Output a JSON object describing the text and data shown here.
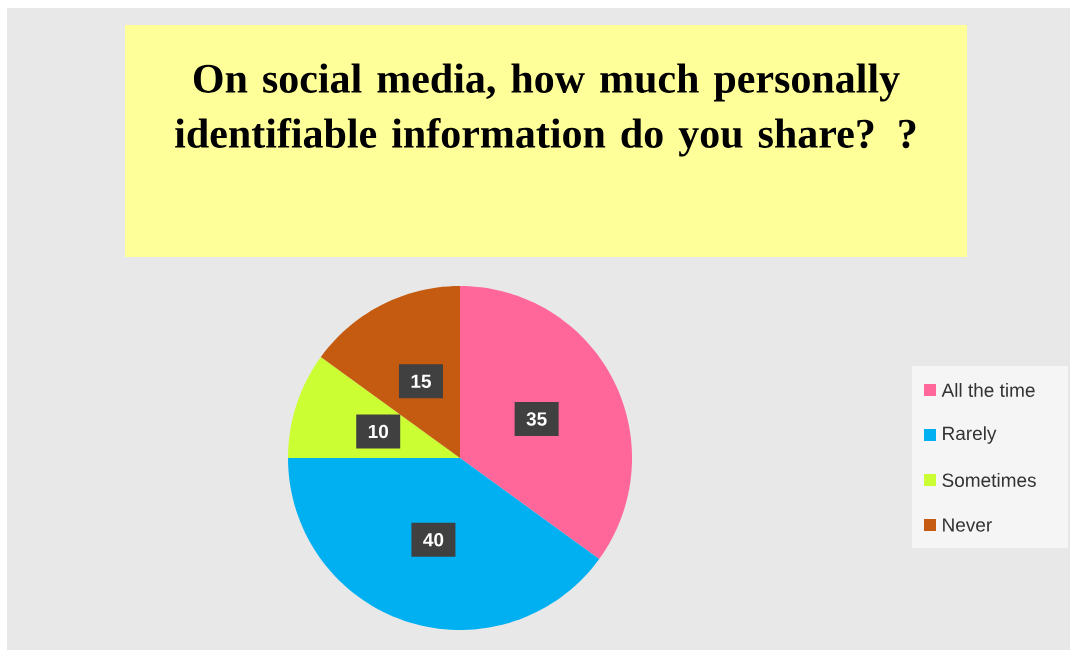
{
  "chart_data": {
    "type": "pie",
    "title": "On social media, how much personally identifiable information do you share? ?",
    "categories": [
      "All the time",
      "Rarely",
      "Sometimes",
      "Never"
    ],
    "values": [
      35,
      40,
      10,
      15
    ],
    "colors": [
      "#ff6699",
      "#00b0f0",
      "#ccff33",
      "#c55a11"
    ],
    "data_labels": true,
    "legend": "right"
  }
}
